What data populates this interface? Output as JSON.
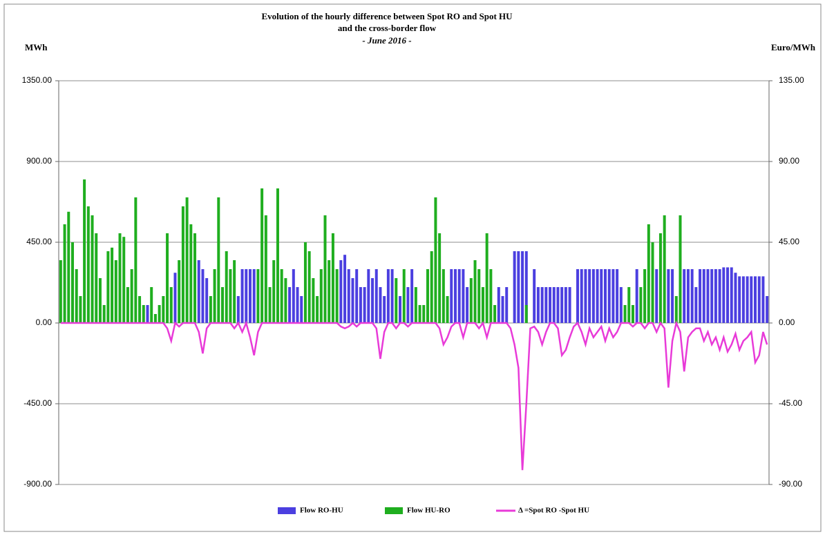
{
  "chart_data": {
    "type": "bar-line",
    "title": [
      "Evolution of the hourly  difference between Spot RO and Spot HU",
      "and the cross-border flow"
    ],
    "subtitle": "- June 2016 -",
    "ylabel": "MWh",
    "y2label": "Euro/MWh",
    "ylim": [
      -900,
      1350
    ],
    "yticks": [
      {
        "value": -900,
        "label": "-900.00"
      },
      {
        "value": -450,
        "label": "-450.00"
      },
      {
        "value": 0,
        "label": "0.00"
      },
      {
        "value": 450,
        "label": "450.00"
      },
      {
        "value": 900,
        "label": "900.00"
      },
      {
        "value": 1350,
        "label": "1350.00"
      }
    ],
    "y2lim": [
      -90,
      135
    ],
    "y2ticks": [
      {
        "value": -90,
        "label": "-90.00"
      },
      {
        "value": -45,
        "label": "-45.00"
      },
      {
        "value": 0,
        "label": "0.00"
      },
      {
        "value": 45,
        "label": "45.00"
      },
      {
        "value": 90,
        "label": "90.00"
      },
      {
        "value": 135,
        "label": "135.00"
      }
    ],
    "grid": true,
    "series": [
      {
        "name": "Flow RO-HU",
        "color": "#4b3fe0",
        "kind": "bar",
        "values": [
          0,
          0,
          0,
          0,
          0,
          0,
          0,
          0,
          0,
          0,
          0,
          0,
          0,
          0,
          0,
          0,
          0,
          0,
          0,
          0,
          0,
          0,
          100,
          0,
          0,
          0,
          0,
          0,
          0,
          280,
          0,
          0,
          0,
          0,
          0,
          350,
          300,
          250,
          0,
          0,
          0,
          0,
          0,
          0,
          0,
          150,
          300,
          300,
          300,
          300,
          0,
          0,
          0,
          0,
          0,
          0,
          0,
          0,
          200,
          300,
          200,
          150,
          0,
          0,
          0,
          0,
          0,
          0,
          0,
          0,
          0,
          350,
          380,
          300,
          250,
          300,
          200,
          200,
          300,
          250,
          300,
          200,
          150,
          300,
          300,
          0,
          150,
          0,
          200,
          300,
          0,
          0,
          0,
          0,
          0,
          0,
          0,
          0,
          0,
          300,
          300,
          300,
          300,
          200,
          0,
          0,
          0,
          0,
          0,
          0,
          0,
          200,
          150,
          200,
          0,
          400,
          400,
          400,
          400,
          0,
          300,
          200,
          200,
          200,
          200,
          200,
          200,
          200,
          200,
          200,
          0,
          300,
          300,
          300,
          300,
          300,
          300,
          300,
          300,
          300,
          300,
          300,
          200,
          0,
          0,
          0,
          300,
          0,
          0,
          0,
          0,
          300,
          0,
          0,
          300,
          300,
          0,
          0,
          300,
          300,
          300,
          200,
          300,
          300,
          300,
          300,
          300,
          300,
          310,
          310,
          310,
          280,
          260,
          260,
          260,
          260,
          260,
          260,
          260,
          150
        ]
      },
      {
        "name": "Flow HU-RO",
        "color": "#1fae1f",
        "kind": "bar",
        "values": [
          350,
          550,
          620,
          450,
          300,
          150,
          800,
          650,
          600,
          500,
          250,
          100,
          400,
          420,
          350,
          500,
          480,
          200,
          300,
          700,
          150,
          100,
          0,
          200,
          50,
          100,
          150,
          500,
          200,
          0,
          350,
          650,
          700,
          550,
          500,
          0,
          0,
          0,
          150,
          300,
          700,
          200,
          400,
          300,
          350,
          0,
          0,
          0,
          0,
          0,
          300,
          750,
          600,
          200,
          350,
          750,
          300,
          250,
          0,
          0,
          0,
          0,
          450,
          400,
          250,
          150,
          300,
          600,
          350,
          500,
          300,
          0,
          0,
          0,
          0,
          0,
          0,
          0,
          0,
          0,
          0,
          0,
          0,
          0,
          0,
          250,
          0,
          300,
          0,
          0,
          200,
          100,
          100,
          300,
          400,
          700,
          500,
          300,
          150,
          0,
          0,
          0,
          0,
          0,
          250,
          350,
          300,
          200,
          500,
          300,
          100,
          0,
          0,
          0,
          0,
          0,
          0,
          0,
          100,
          0,
          0,
          0,
          0,
          0,
          0,
          0,
          0,
          0,
          0,
          0,
          0,
          0,
          0,
          0,
          0,
          0,
          0,
          0,
          0,
          0,
          0,
          0,
          0,
          100,
          200,
          100,
          0,
          200,
          300,
          550,
          450,
          0,
          500,
          600,
          0,
          0,
          150,
          600,
          0,
          0,
          0,
          0,
          0,
          0,
          0,
          0,
          0,
          0,
          0,
          0,
          0,
          0,
          0,
          0,
          0,
          0,
          0,
          0,
          0,
          0
        ]
      },
      {
        "name": "Δ =Spot RO -Spot HU",
        "color": "#e83ad8",
        "kind": "line",
        "axis": "y2",
        "values": [
          0,
          0,
          0,
          0,
          0,
          0,
          0,
          0,
          0,
          0,
          0,
          0,
          0,
          0,
          0,
          0,
          0,
          0,
          0,
          0,
          0,
          0,
          0,
          0,
          0,
          0,
          0,
          -3,
          -10,
          0,
          -2,
          0,
          0,
          0,
          0,
          -5,
          -17,
          -3,
          0,
          0,
          0,
          0,
          0,
          0,
          -3,
          0,
          -5,
          0,
          -8,
          -18,
          -5,
          0,
          0,
          0,
          0,
          0,
          0,
          0,
          0,
          0,
          0,
          0,
          0,
          0,
          0,
          0,
          0,
          0,
          0,
          0,
          0,
          -2,
          -3,
          -2,
          0,
          -2,
          0,
          0,
          0,
          0,
          -3,
          -20,
          -5,
          0,
          0,
          -3,
          0,
          0,
          -2,
          0,
          0,
          0,
          0,
          0,
          0,
          0,
          -3,
          -12,
          -8,
          -2,
          0,
          0,
          -8,
          0,
          0,
          0,
          -3,
          0,
          -8,
          0,
          0,
          0,
          0,
          0,
          -3,
          -12,
          -25,
          -82,
          -45,
          -3,
          -2,
          -5,
          -12,
          -5,
          0,
          0,
          -3,
          -18,
          -15,
          -8,
          -2,
          0,
          -5,
          -12,
          -3,
          -8,
          -5,
          -2,
          -10,
          -3,
          -8,
          -5,
          0,
          0,
          0,
          -2,
          0,
          0,
          -3,
          0,
          0,
          -5,
          0,
          -3,
          -36,
          -10,
          0,
          -5,
          -27,
          -8,
          -5,
          -3,
          -3,
          -10,
          -5,
          -12,
          -8,
          -15,
          -8,
          -16,
          -12,
          -6,
          -15,
          -10,
          -8,
          -5,
          -22,
          -18,
          -5,
          -12
        ]
      }
    ]
  }
}
